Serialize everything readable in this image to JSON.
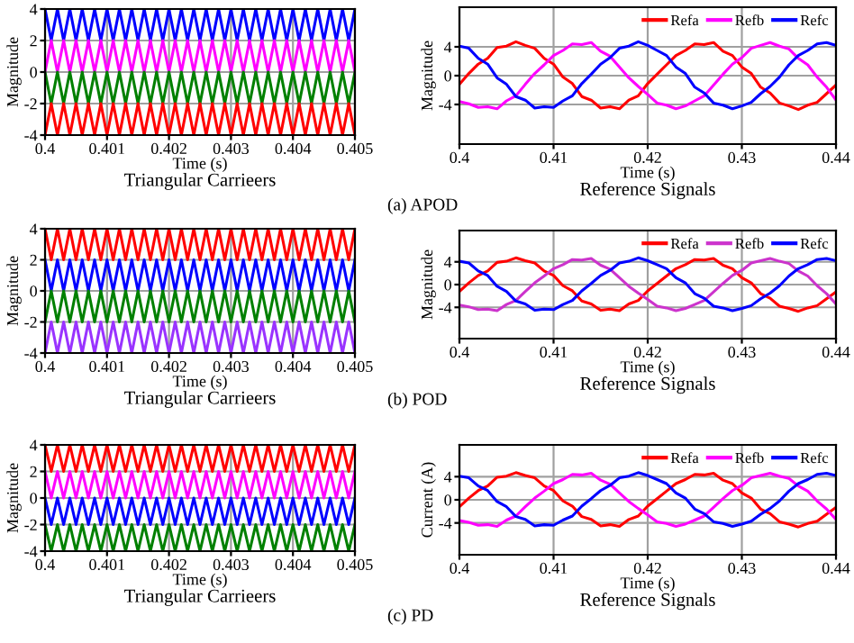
{
  "chart_data": [
    {
      "type": "line",
      "title": "Triangular Carrieers",
      "xlabel": "Time (s)",
      "ylabel": "Magnitude",
      "xlim": [
        0.4,
        0.405
      ],
      "ylim": [
        -4,
        4
      ],
      "xticks": [
        0.4,
        0.401,
        0.402,
        0.403,
        0.404,
        0.405
      ],
      "yticks": [
        -4,
        -2,
        0,
        2,
        4
      ],
      "grid": true,
      "legend": false,
      "x": [
        0.4,
        0.4001,
        0.4002,
        0.4003,
        0.4004,
        0.4005,
        0.4006,
        0.4007,
        0.4008,
        0.4009,
        0.401,
        0.4011,
        0.4012,
        0.4013,
        0.4014,
        0.4015,
        0.4016,
        0.4017,
        0.4018,
        0.4019,
        0.402,
        0.4021,
        0.4022,
        0.4023,
        0.4024,
        0.4025,
        0.4026,
        0.4027,
        0.4028,
        0.4029,
        0.403,
        0.4031,
        0.4032,
        0.4033,
        0.4034,
        0.4035,
        0.4036,
        0.4037,
        0.4038,
        0.4039,
        0.404,
        0.4041,
        0.4042,
        0.4043,
        0.4044,
        0.4045,
        0.4046,
        0.4047,
        0.4048,
        0.4049,
        0.405
      ],
      "series": [
        {
          "color": "#0000ff",
          "values": [
            4,
            2,
            4,
            2,
            4,
            2,
            4,
            2,
            4,
            2,
            4,
            2,
            4,
            2,
            4,
            2,
            4,
            2,
            4,
            2,
            4,
            2,
            4,
            2,
            4,
            2,
            4,
            2,
            4,
            2,
            4,
            2,
            4,
            2,
            4,
            2,
            4,
            2,
            4,
            2,
            4,
            2,
            4,
            2,
            4,
            2,
            4,
            2,
            4,
            2,
            4
          ]
        },
        {
          "color": "#ff00ff",
          "values": [
            0,
            2,
            0,
            2,
            0,
            2,
            0,
            2,
            0,
            2,
            0,
            2,
            0,
            2,
            0,
            2,
            0,
            2,
            0,
            2,
            0,
            2,
            0,
            2,
            0,
            2,
            0,
            2,
            0,
            2,
            0,
            2,
            0,
            2,
            0,
            2,
            0,
            2,
            0,
            2,
            0,
            2,
            0,
            2,
            0,
            2,
            0,
            2,
            0,
            2,
            0
          ]
        },
        {
          "color": "#008000",
          "values": [
            0,
            -2,
            0,
            -2,
            0,
            -2,
            0,
            -2,
            0,
            -2,
            0,
            -2,
            0,
            -2,
            0,
            -2,
            0,
            -2,
            0,
            -2,
            0,
            -2,
            0,
            -2,
            0,
            -2,
            0,
            -2,
            0,
            -2,
            0,
            -2,
            0,
            -2,
            0,
            -2,
            0,
            -2,
            0,
            -2,
            0,
            -2,
            0,
            -2,
            0,
            -2,
            0,
            -2,
            0,
            -2,
            0
          ]
        },
        {
          "color": "#ff0000",
          "values": [
            -4,
            -2,
            -4,
            -2,
            -4,
            -2,
            -4,
            -2,
            -4,
            -2,
            -4,
            -2,
            -4,
            -2,
            -4,
            -2,
            -4,
            -2,
            -4,
            -2,
            -4,
            -2,
            -4,
            -2,
            -4,
            -2,
            -4,
            -2,
            -4,
            -2,
            -4,
            -2,
            -4,
            -2,
            -4,
            -2,
            -4,
            -2,
            -4,
            -2,
            -4,
            -2,
            -4,
            -2,
            -4,
            -2,
            -4,
            -2,
            -4,
            -2,
            -4
          ]
        }
      ]
    },
    {
      "type": "line",
      "title": "Reference Signals",
      "xlabel": "Time (s)",
      "ylabel": "Magnitude",
      "xlim": [
        0.4,
        0.44
      ],
      "ylim": [
        -9.5,
        9.5
      ],
      "xticks": [
        0.4,
        0.41,
        0.42,
        0.43,
        0.44
      ],
      "yticks": [
        -4,
        0,
        4
      ],
      "grid": true,
      "legend": "top right",
      "annotations": [
        "(a) APOD"
      ],
      "x": [
        0.4,
        0.401,
        0.402,
        0.403,
        0.404,
        0.405,
        0.406,
        0.407,
        0.408,
        0.409,
        0.41,
        0.411,
        0.412,
        0.413,
        0.414,
        0.415,
        0.416,
        0.417,
        0.418,
        0.419,
        0.42,
        0.421,
        0.422,
        0.423,
        0.424,
        0.425,
        0.426,
        0.427,
        0.428,
        0.429,
        0.43,
        0.431,
        0.432,
        0.433,
        0.434,
        0.435,
        0.436,
        0.437,
        0.438,
        0.439,
        0.44
      ],
      "series": [
        {
          "name": "Refa",
          "color": "#ff0000",
          "values": [
            -1.2,
            0.3,
            1.6,
            2.4,
            3.9,
            4.1,
            4.7,
            4.2,
            3.8,
            2.4,
            1.6,
            -0.2,
            -1.1,
            -2.9,
            -3.4,
            -4.5,
            -4.3,
            -4.6,
            -3.4,
            -2.8,
            -1.1,
            0.2,
            1.5,
            2.8,
            3.5,
            4.4,
            4.3,
            4.6,
            3.4,
            2.8,
            1.2,
            0.3,
            -1.6,
            -2.4,
            -3.8,
            -4.2,
            -4.7,
            -4.1,
            -3.7,
            -2.5,
            -1.3
          ]
        },
        {
          "name": "Refb",
          "color": "#ff00ff",
          "values": [
            -3.6,
            -3.9,
            -4.4,
            -4.3,
            -4.6,
            -3.5,
            -2.8,
            -1.2,
            0.3,
            1.5,
            2.8,
            3.5,
            4.4,
            4.3,
            4.6,
            3.4,
            2.7,
            1.2,
            -0.3,
            -1.5,
            -2.6,
            -3.8,
            -4.1,
            -4.6,
            -4.2,
            -3.5,
            -2.8,
            -1.3,
            0.2,
            1.6,
            2.5,
            3.8,
            4.2,
            4.6,
            4.1,
            3.7,
            2.4,
            1.5,
            -0.2,
            -1.6,
            -3.4
          ]
        },
        {
          "name": "Refc",
          "color": "#0000ff",
          "values": [
            4.1,
            3.8,
            2.4,
            1.6,
            -0.3,
            -1.2,
            -2.9,
            -3.4,
            -4.5,
            -4.3,
            -4.4,
            -3.5,
            -2.8,
            -1.1,
            0.2,
            1.6,
            2.5,
            3.8,
            4.1,
            4.7,
            4.2,
            3.5,
            2.8,
            1.2,
            0.3,
            -1.6,
            -2.4,
            -3.8,
            -4.1,
            -4.6,
            -4.2,
            -3.7,
            -2.5,
            -1.5,
            -0.2,
            1.5,
            2.8,
            3.5,
            4.4,
            4.6,
            4.2
          ]
        }
      ]
    },
    {
      "type": "line",
      "title": "Triangular Carrieers",
      "xlabel": "Time (s)",
      "ylabel": "Magnitude",
      "xlim": [
        0.4,
        0.405
      ],
      "ylim": [
        -4,
        4
      ],
      "xticks": [
        0.4,
        0.401,
        0.402,
        0.403,
        0.404,
        0.405
      ],
      "yticks": [
        -4,
        -2,
        0,
        2,
        4
      ],
      "grid": true,
      "legend": false,
      "x": [
        0.4,
        0.4001,
        0.4002,
        0.4003,
        0.4004,
        0.4005,
        0.4006,
        0.4007,
        0.4008,
        0.4009,
        0.401,
        0.4011,
        0.4012,
        0.4013,
        0.4014,
        0.4015,
        0.4016,
        0.4017,
        0.4018,
        0.4019,
        0.402,
        0.4021,
        0.4022,
        0.4023,
        0.4024,
        0.4025,
        0.4026,
        0.4027,
        0.4028,
        0.4029,
        0.403,
        0.4031,
        0.4032,
        0.4033,
        0.4034,
        0.4035,
        0.4036,
        0.4037,
        0.4038,
        0.4039,
        0.404,
        0.4041,
        0.4042,
        0.4043,
        0.4044,
        0.4045,
        0.4046,
        0.4047,
        0.4048,
        0.4049,
        0.405
      ],
      "series": [
        {
          "color": "#ff0000",
          "values": [
            4,
            2,
            4,
            2,
            4,
            2,
            4,
            2,
            4,
            2,
            4,
            2,
            4,
            2,
            4,
            2,
            4,
            2,
            4,
            2,
            4,
            2,
            4,
            2,
            4,
            2,
            4,
            2,
            4,
            2,
            4,
            2,
            4,
            2,
            4,
            2,
            4,
            2,
            4,
            2,
            4,
            2,
            4,
            2,
            4,
            2,
            4,
            2,
            4,
            2,
            4
          ]
        },
        {
          "color": "#0000ff",
          "values": [
            2,
            0,
            2,
            0,
            2,
            0,
            2,
            0,
            2,
            0,
            2,
            0,
            2,
            0,
            2,
            0,
            2,
            0,
            2,
            0,
            2,
            0,
            2,
            0,
            2,
            0,
            2,
            0,
            2,
            0,
            2,
            0,
            2,
            0,
            2,
            0,
            2,
            0,
            2,
            0,
            2,
            0,
            2,
            0,
            2,
            0,
            2,
            0,
            2,
            0,
            2
          ]
        },
        {
          "color": "#008000",
          "values": [
            -2,
            0,
            -2,
            0,
            -2,
            0,
            -2,
            0,
            -2,
            0,
            -2,
            0,
            -2,
            0,
            -2,
            0,
            -2,
            0,
            -2,
            0,
            -2,
            0,
            -2,
            0,
            -2,
            0,
            -2,
            0,
            -2,
            0,
            -2,
            0,
            -2,
            0,
            -2,
            0,
            -2,
            0,
            -2,
            0,
            -2,
            0,
            -2,
            0,
            -2,
            0,
            -2,
            0,
            -2,
            0,
            -2
          ]
        },
        {
          "color": "#9933ff",
          "values": [
            -4,
            -2,
            -4,
            -2,
            -4,
            -2,
            -4,
            -2,
            -4,
            -2,
            -4,
            -2,
            -4,
            -2,
            -4,
            -2,
            -4,
            -2,
            -4,
            -2,
            -4,
            -2,
            -4,
            -2,
            -4,
            -2,
            -4,
            -2,
            -4,
            -2,
            -4,
            -2,
            -4,
            -2,
            -4,
            -2,
            -4,
            -2,
            -4,
            -2,
            -4,
            -2,
            -4,
            -2,
            -4,
            -2,
            -4,
            -2,
            -4,
            -2,
            -4
          ]
        }
      ]
    },
    {
      "type": "line",
      "title": "Reference Signals",
      "xlabel": "Time (s)",
      "ylabel": "Magnitude",
      "xlim": [
        0.4,
        0.44
      ],
      "ylim": [
        -9.5,
        9.5
      ],
      "xticks": [
        0.4,
        0.41,
        0.42,
        0.43,
        0.44
      ],
      "yticks": [
        -4,
        0,
        4
      ],
      "grid": true,
      "legend": "top right",
      "annotations": [
        "(b) POD"
      ],
      "x": [
        0.4,
        0.401,
        0.402,
        0.403,
        0.404,
        0.405,
        0.406,
        0.407,
        0.408,
        0.409,
        0.41,
        0.411,
        0.412,
        0.413,
        0.414,
        0.415,
        0.416,
        0.417,
        0.418,
        0.419,
        0.42,
        0.421,
        0.422,
        0.423,
        0.424,
        0.425,
        0.426,
        0.427,
        0.428,
        0.429,
        0.43,
        0.431,
        0.432,
        0.433,
        0.434,
        0.435,
        0.436,
        0.437,
        0.438,
        0.439,
        0.44
      ],
      "series": [
        {
          "name": "Refa",
          "color": "#ff0000",
          "values": [
            -1.2,
            0.3,
            1.6,
            2.4,
            3.9,
            4.1,
            4.7,
            4.2,
            3.8,
            2.4,
            1.6,
            -0.2,
            -1.1,
            -2.9,
            -3.4,
            -4.5,
            -4.3,
            -4.6,
            -3.4,
            -2.8,
            -1.1,
            0.2,
            1.5,
            2.8,
            3.5,
            4.4,
            4.3,
            4.6,
            3.4,
            2.8,
            1.2,
            0.3,
            -1.6,
            -2.4,
            -3.8,
            -4.2,
            -4.7,
            -4.1,
            -3.7,
            -2.5,
            -1.3
          ]
        },
        {
          "name": "Refb",
          "color": "#cc33cc",
          "values": [
            -3.6,
            -3.9,
            -4.4,
            -4.3,
            -4.6,
            -3.5,
            -2.8,
            -1.2,
            0.3,
            1.5,
            2.8,
            3.5,
            4.4,
            4.3,
            4.6,
            3.4,
            2.7,
            1.2,
            -0.3,
            -1.5,
            -2.6,
            -3.8,
            -4.1,
            -4.6,
            -4.2,
            -3.5,
            -2.8,
            -1.3,
            0.2,
            1.6,
            2.5,
            3.8,
            4.2,
            4.6,
            4.1,
            3.7,
            2.4,
            1.5,
            -0.2,
            -1.6,
            -3.4
          ]
        },
        {
          "name": "Refc",
          "color": "#0000ff",
          "values": [
            4.1,
            3.8,
            2.4,
            1.6,
            -0.3,
            -1.2,
            -2.9,
            -3.4,
            -4.5,
            -4.3,
            -4.4,
            -3.5,
            -2.8,
            -1.1,
            0.2,
            1.6,
            2.5,
            3.8,
            4.1,
            4.7,
            4.2,
            3.5,
            2.8,
            1.2,
            0.3,
            -1.6,
            -2.4,
            -3.8,
            -4.1,
            -4.6,
            -4.2,
            -3.7,
            -2.5,
            -1.5,
            -0.2,
            1.5,
            2.8,
            3.5,
            4.4,
            4.6,
            4.2
          ]
        }
      ]
    },
    {
      "type": "line",
      "title": "Triangular Carrieers",
      "xlabel": "Time (s)",
      "ylabel": "Magnitude",
      "xlim": [
        0.4,
        0.405
      ],
      "ylim": [
        -4,
        4
      ],
      "xticks": [
        0.4,
        0.401,
        0.402,
        0.403,
        0.404,
        0.405
      ],
      "yticks": [
        -4,
        -2,
        0,
        2,
        4
      ],
      "grid": true,
      "legend": false,
      "x": [
        0.4,
        0.4001,
        0.4002,
        0.4003,
        0.4004,
        0.4005,
        0.4006,
        0.4007,
        0.4008,
        0.4009,
        0.401,
        0.4011,
        0.4012,
        0.4013,
        0.4014,
        0.4015,
        0.4016,
        0.4017,
        0.4018,
        0.4019,
        0.402,
        0.4021,
        0.4022,
        0.4023,
        0.4024,
        0.4025,
        0.4026,
        0.4027,
        0.4028,
        0.4029,
        0.403,
        0.4031,
        0.4032,
        0.4033,
        0.4034,
        0.4035,
        0.4036,
        0.4037,
        0.4038,
        0.4039,
        0.404,
        0.4041,
        0.4042,
        0.4043,
        0.4044,
        0.4045,
        0.4046,
        0.4047,
        0.4048,
        0.4049,
        0.405
      ],
      "series": [
        {
          "color": "#ff0000",
          "values": [
            4,
            2,
            4,
            2,
            4,
            2,
            4,
            2,
            4,
            2,
            4,
            2,
            4,
            2,
            4,
            2,
            4,
            2,
            4,
            2,
            4,
            2,
            4,
            2,
            4,
            2,
            4,
            2,
            4,
            2,
            4,
            2,
            4,
            2,
            4,
            2,
            4,
            2,
            4,
            2,
            4,
            2,
            4,
            2,
            4,
            2,
            4,
            2,
            4,
            2,
            4
          ]
        },
        {
          "color": "#ff00ff",
          "values": [
            2,
            0,
            2,
            0,
            2,
            0,
            2,
            0,
            2,
            0,
            2,
            0,
            2,
            0,
            2,
            0,
            2,
            0,
            2,
            0,
            2,
            0,
            2,
            0,
            2,
            0,
            2,
            0,
            2,
            0,
            2,
            0,
            2,
            0,
            2,
            0,
            2,
            0,
            2,
            0,
            2,
            0,
            2,
            0,
            2,
            0,
            2,
            0,
            2,
            0,
            2
          ]
        },
        {
          "color": "#0000ff",
          "values": [
            0,
            -2,
            0,
            -2,
            0,
            -2,
            0,
            -2,
            0,
            -2,
            0,
            -2,
            0,
            -2,
            0,
            -2,
            0,
            -2,
            0,
            -2,
            0,
            -2,
            0,
            -2,
            0,
            -2,
            0,
            -2,
            0,
            -2,
            0,
            -2,
            0,
            -2,
            0,
            -2,
            0,
            -2,
            0,
            -2,
            0,
            -2,
            0,
            -2,
            0,
            -2,
            0,
            -2,
            0,
            -2,
            0
          ]
        },
        {
          "color": "#008000",
          "values": [
            -2,
            -4,
            -2,
            -4,
            -2,
            -4,
            -2,
            -4,
            -2,
            -4,
            -2,
            -4,
            -2,
            -4,
            -2,
            -4,
            -2,
            -4,
            -2,
            -4,
            -2,
            -4,
            -2,
            -4,
            -2,
            -4,
            -2,
            -4,
            -2,
            -4,
            -2,
            -4,
            -2,
            -4,
            -2,
            -4,
            -2,
            -4,
            -2,
            -4,
            -2,
            -4,
            -2,
            -4,
            -2,
            -4,
            -2,
            -4,
            -2,
            -4,
            -2
          ]
        }
      ]
    },
    {
      "type": "line",
      "title": "Reference Signals",
      "xlabel": "Time (s)",
      "ylabel": "Current (A)",
      "xlim": [
        0.4,
        0.44
      ],
      "ylim": [
        -9.5,
        9.5
      ],
      "xticks": [
        0.4,
        0.41,
        0.42,
        0.43,
        0.44
      ],
      "yticks": [
        -4,
        0,
        4
      ],
      "grid": true,
      "legend": "top right",
      "annotations": [
        "(c) PD"
      ],
      "x": [
        0.4,
        0.401,
        0.402,
        0.403,
        0.404,
        0.405,
        0.406,
        0.407,
        0.408,
        0.409,
        0.41,
        0.411,
        0.412,
        0.413,
        0.414,
        0.415,
        0.416,
        0.417,
        0.418,
        0.419,
        0.42,
        0.421,
        0.422,
        0.423,
        0.424,
        0.425,
        0.426,
        0.427,
        0.428,
        0.429,
        0.43,
        0.431,
        0.432,
        0.433,
        0.434,
        0.435,
        0.436,
        0.437,
        0.438,
        0.439,
        0.44
      ],
      "series": [
        {
          "name": "Refa",
          "color": "#ff0000",
          "values": [
            -1.2,
            0.3,
            1.6,
            2.4,
            3.9,
            4.1,
            4.7,
            4.2,
            3.8,
            2.4,
            1.6,
            -0.2,
            -1.1,
            -2.9,
            -3.4,
            -4.5,
            -4.3,
            -4.6,
            -3.4,
            -2.8,
            -1.1,
            0.2,
            1.5,
            2.8,
            3.5,
            4.4,
            4.3,
            4.6,
            3.4,
            2.8,
            1.2,
            0.3,
            -1.6,
            -2.4,
            -3.8,
            -4.2,
            -4.7,
            -4.1,
            -3.7,
            -2.5,
            -1.3
          ]
        },
        {
          "name": "Refb",
          "color": "#ff00ff",
          "values": [
            -3.6,
            -3.9,
            -4.4,
            -4.3,
            -4.6,
            -3.5,
            -2.8,
            -1.2,
            0.3,
            1.5,
            2.8,
            3.5,
            4.4,
            4.3,
            4.6,
            3.4,
            2.7,
            1.2,
            -0.3,
            -1.5,
            -2.6,
            -3.8,
            -4.1,
            -4.6,
            -4.2,
            -3.5,
            -2.8,
            -1.3,
            0.2,
            1.6,
            2.5,
            3.8,
            4.2,
            4.6,
            4.1,
            3.7,
            2.4,
            1.5,
            -0.2,
            -1.6,
            -3.4
          ]
        },
        {
          "name": "Refc",
          "color": "#0000ff",
          "values": [
            4.1,
            3.8,
            2.4,
            1.6,
            -0.3,
            -1.2,
            -2.9,
            -3.4,
            -4.5,
            -4.3,
            -4.4,
            -3.5,
            -2.8,
            -1.1,
            0.2,
            1.6,
            2.5,
            3.8,
            4.1,
            4.7,
            4.2,
            3.5,
            2.8,
            1.2,
            0.3,
            -1.6,
            -2.4,
            -3.8,
            -4.1,
            -4.6,
            -4.2,
            -3.7,
            -2.5,
            -1.5,
            -0.2,
            1.5,
            2.8,
            3.5,
            4.4,
            4.6,
            4.2
          ]
        }
      ]
    }
  ]
}
